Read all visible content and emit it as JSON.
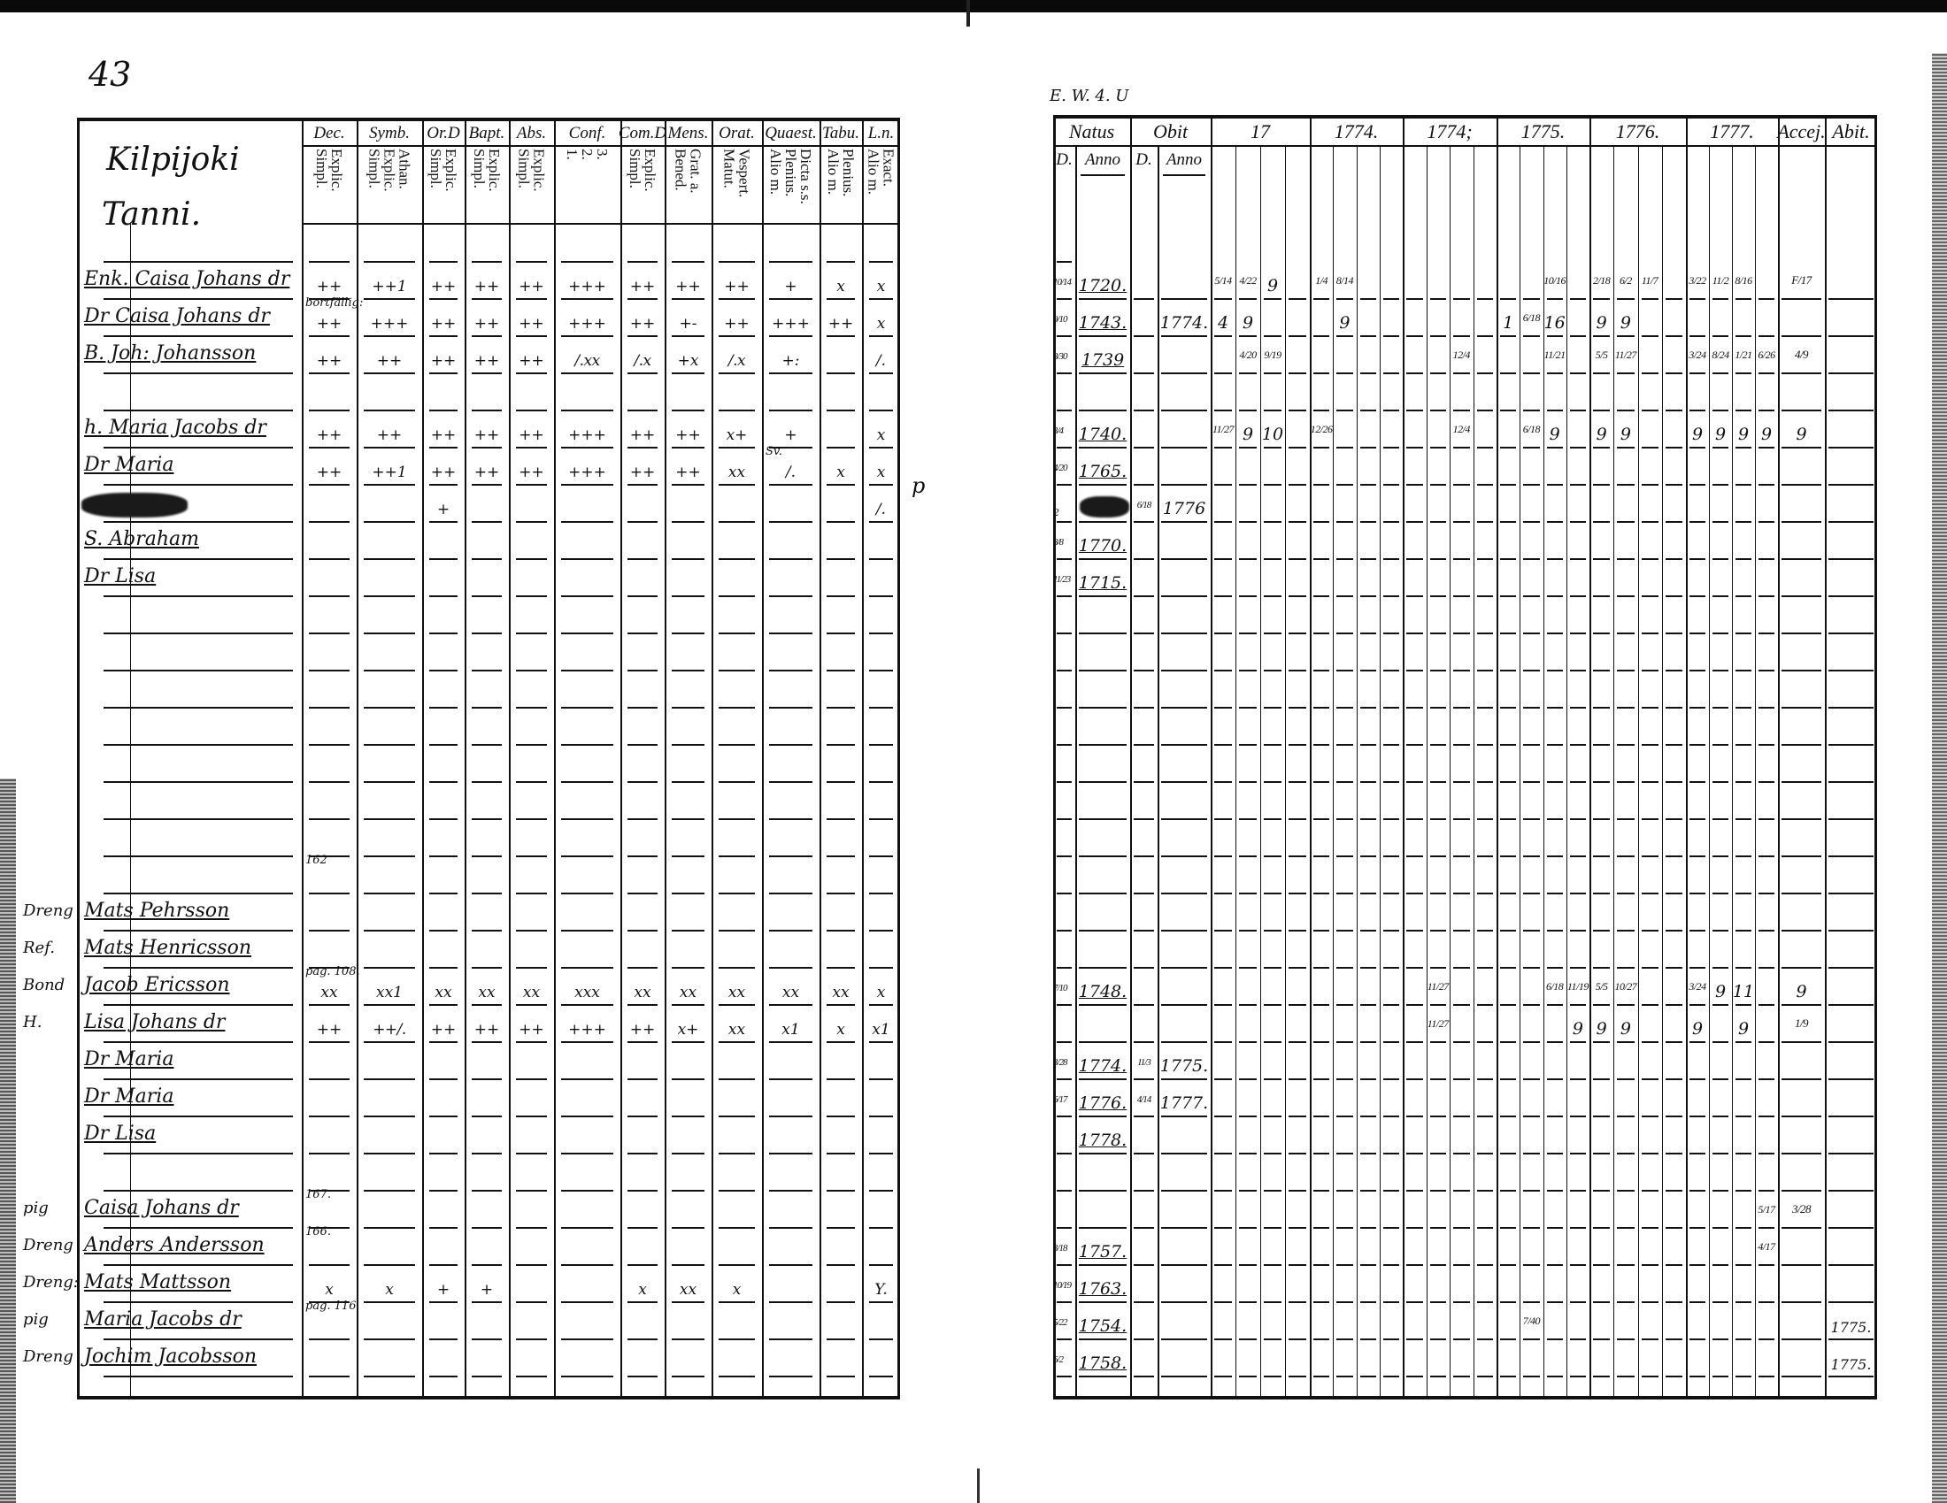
{
  "left_page": {
    "page_number": "43",
    "place_heading": [
      "Kilpijoki",
      "Tanni."
    ],
    "columns": [
      {
        "top": "Dec.",
        "sub": "Explic.\nSimpl."
      },
      {
        "top": "Symb.",
        "sub": "Athan.\nExplic.\nSimpl."
      },
      {
        "top": "Or.D",
        "sub": "Explic.\nSimpl."
      },
      {
        "top": "Bapt.",
        "sub": "Explic.\nSimpl."
      },
      {
        "top": "Abs.",
        "sub": "Explic.\nSimpl."
      },
      {
        "top": "Conf.",
        "sub": "3.\n2.\n1."
      },
      {
        "top": "Com.D",
        "sub": "Explic.\nSimpl."
      },
      {
        "top": "Mens.",
        "sub": "Grat. a.\nBened."
      },
      {
        "top": "Orat.",
        "sub": "Vespert.\nMatut."
      },
      {
        "top": "Quaest.",
        "sub": "Dicta s.s.\nPlenius.\nAlio m."
      },
      {
        "top": "Tabu.",
        "sub": "Plenius.\nAlio m."
      },
      {
        "top": "L.n.",
        "sub": "Exact.\nAlio m."
      }
    ],
    "rows": [
      {
        "row": 1,
        "prefix": "",
        "name": "Enk. Caisa Johans dr",
        "marks": [
          "++",
          "++1",
          "++",
          "++",
          "++",
          "+++",
          "++",
          "++",
          "++",
          "+",
          "x",
          "x"
        ]
      },
      {
        "row": 2,
        "prefix": "",
        "name": "Dr Caisa Johans dr",
        "marks": [
          "++",
          "+++",
          "++",
          "++",
          "++",
          "+++",
          "++",
          "+-",
          "++",
          "+++",
          "++",
          "x"
        ]
      },
      {
        "row": 3,
        "prefix": "",
        "name": "B. Joh: Johansson",
        "marks": [
          "++",
          "++",
          "++",
          "++",
          "++",
          "/.xx",
          "/.x",
          "+x",
          "/.x",
          "+:",
          "",
          "/."
        ]
      },
      {
        "row": 5,
        "prefix": "",
        "name": "h. Maria Jacobs dr",
        "marks": [
          "++",
          "++",
          "++",
          "++",
          "++",
          "+++",
          "++",
          "++",
          "x+",
          "+",
          "",
          "x"
        ]
      },
      {
        "row": 6,
        "prefix": "",
        "name": "Dr Maria",
        "marks": [
          "++",
          "++1",
          "++",
          "++",
          "++",
          "+++",
          "++",
          "++",
          "xx",
          "/.",
          "x",
          "x"
        ]
      },
      {
        "row": 7,
        "prefix": "",
        "name": "",
        "marks": [
          "",
          "",
          "+",
          "",
          "",
          "",
          "",
          "",
          "",
          "",
          "",
          "/."
        ]
      },
      {
        "row": 8,
        "prefix": "",
        "name": "S. Abraham",
        "marks": [
          "",
          "",
          "",
          "",
          "",
          "",
          "",
          "",
          "",
          "",
          "",
          ""
        ]
      },
      {
        "row": 9,
        "prefix": "",
        "name": "Dr Lisa",
        "marks": [
          "",
          "",
          "",
          "",
          "",
          "",
          "",
          "",
          "",
          "",
          "",
          ""
        ]
      },
      {
        "row": 18,
        "prefix": "Dreng",
        "name": "Mats Pehrsson",
        "marks": [
          "",
          "",
          "",
          "",
          "",
          "",
          "",
          "",
          "",
          "",
          "",
          ""
        ]
      },
      {
        "row": 19,
        "prefix": "Ref.",
        "name": "Mats Henricsson",
        "marks": [
          "",
          "",
          "",
          "",
          "",
          "",
          "",
          "",
          "",
          "",
          "",
          ""
        ]
      },
      {
        "row": 20,
        "prefix": "Bond",
        "name": "Jacob Ericsson",
        "marks": [
          "xx",
          "xx1",
          "xx",
          "xx",
          "xx",
          "xxx",
          "xx",
          "xx",
          "xx",
          "xx",
          "xx",
          "x"
        ]
      },
      {
        "row": 21,
        "prefix": "H.",
        "name": "Lisa Johans dr",
        "marks": [
          "++",
          "++/.",
          "++",
          "++",
          "++",
          "+++",
          "++",
          "x+",
          "xx",
          "x1",
          "x",
          "x1"
        ]
      },
      {
        "row": 22,
        "prefix": "",
        "name": "Dr Maria",
        "marks": [
          "",
          "",
          "",
          "",
          "",
          "",
          "",
          "",
          "",
          "",
          "",
          ""
        ]
      },
      {
        "row": 23,
        "prefix": "",
        "name": "Dr Maria",
        "marks": [
          "",
          "",
          "",
          "",
          "",
          "",
          "",
          "",
          "",
          "",
          "",
          ""
        ]
      },
      {
        "row": 24,
        "prefix": "",
        "name": "Dr Lisa",
        "marks": [
          "",
          "",
          "",
          "",
          "",
          "",
          "",
          "",
          "",
          "",
          "",
          ""
        ]
      },
      {
        "row": 26,
        "prefix": "pig",
        "name": "Caisa Johans dr",
        "marks": [
          "",
          "",
          "",
          "",
          "",
          "",
          "",
          "",
          "",
          "",
          "",
          ""
        ]
      },
      {
        "row": 27,
        "prefix": "Dreng",
        "name": "Anders Andersson",
        "marks": [
          "",
          "",
          "",
          "",
          "",
          "",
          "",
          "",
          "",
          "",
          "",
          ""
        ]
      },
      {
        "row": 28,
        "prefix": "Dreng:",
        "name": "Mats Mattsson",
        "marks": [
          "x",
          "x",
          "+",
          "+",
          "",
          "",
          "x",
          "xx",
          "x",
          "",
          "",
          "Y."
        ]
      },
      {
        "row": 29,
        "prefix": "pig",
        "name": "Maria Jacobs dr",
        "marks": [
          "",
          "",
          "",
          "",
          "",
          "",
          "",
          "",
          "",
          "",
          "",
          ""
        ]
      },
      {
        "row": 30,
        "prefix": "Dreng",
        "name": "Jochim Jacobsson",
        "marks": [
          "",
          "",
          "",
          "",
          "",
          "",
          "",
          "",
          "",
          "",
          "",
          ""
        ]
      }
    ],
    "notes": [
      {
        "row": 2,
        "col": 0,
        "text": "bortfällig:"
      },
      {
        "row": 6,
        "col": 9,
        "text": "Sv."
      },
      {
        "row": 17,
        "col": 0,
        "text": "162"
      },
      {
        "row": 20,
        "col": 0,
        "text": "pag. 108."
      },
      {
        "row": 26,
        "col": 0,
        "text": "167."
      },
      {
        "row": 27,
        "col": 0,
        "text": "166."
      },
      {
        "row": 29,
        "col": 0,
        "text": "pag. 116"
      }
    ],
    "margin_mark": "p"
  },
  "right_page": {
    "top_note": "E. W. 4. U",
    "headers": {
      "natus": "Natus",
      "obit": "Obit",
      "years": [
        "17",
        "1774.",
        "1774;",
        "1775.",
        "1776.",
        "1777."
      ],
      "accej": "Accej.",
      "abit": "Abit.",
      "d": "D.",
      "anno": "Anno"
    },
    "rows": [
      {
        "row": 1,
        "natus_d": "10/14",
        "natus_anno": "1720.",
        "obit_d": "",
        "obit_anno": "",
        "marks": [
          [
            0,
            0,
            "5/14"
          ],
          [
            0,
            1,
            "4/22"
          ],
          [
            0,
            2,
            "9"
          ],
          [
            1,
            0,
            "1/4"
          ],
          [
            1,
            1,
            "8/14"
          ],
          [
            3,
            2,
            "10/16"
          ],
          [
            4,
            0,
            "2/18"
          ],
          [
            4,
            1,
            "6/2"
          ],
          [
            4,
            2,
            "11/7"
          ],
          [
            5,
            0,
            "3/22"
          ],
          [
            5,
            1,
            "11/2"
          ],
          [
            5,
            2,
            "8/16"
          ]
        ],
        "accej": "F/17",
        "abit": ""
      },
      {
        "row": 2,
        "natus_d": "9/10",
        "natus_anno": "1743.",
        "obit_d": "",
        "obit_anno": "1774.",
        "marks": [
          [
            0,
            0,
            "4"
          ],
          [
            0,
            1,
            "9"
          ],
          [
            1,
            1,
            "9"
          ],
          [
            3,
            0,
            "1"
          ],
          [
            3,
            1,
            "6/18"
          ],
          [
            3,
            2,
            "16"
          ],
          [
            4,
            0,
            "9"
          ],
          [
            4,
            1,
            "9"
          ]
        ],
        "accej": "",
        "abit": ""
      },
      {
        "row": 3,
        "natus_d": "8/30",
        "natus_anno": "1739",
        "obit_d": "",
        "obit_anno": "",
        "marks": [
          [
            0,
            1,
            "4/20"
          ],
          [
            0,
            2,
            "9/19"
          ],
          [
            2,
            2,
            "12/4"
          ],
          [
            3,
            2,
            "11/21"
          ],
          [
            4,
            0,
            "5/5"
          ],
          [
            4,
            1,
            "11/27"
          ],
          [
            5,
            0,
            "3/24"
          ],
          [
            5,
            1,
            "8/24"
          ],
          [
            5,
            2,
            "1/21"
          ],
          [
            5,
            3,
            "6/26"
          ]
        ],
        "accej": "4/9",
        "abit": ""
      },
      {
        "row": 5,
        "natus_d": "3/4",
        "natus_anno": "1740.",
        "obit_d": "",
        "obit_anno": "",
        "marks": [
          [
            0,
            0,
            "11/27"
          ],
          [
            0,
            1,
            "9"
          ],
          [
            0,
            2,
            "10"
          ],
          [
            1,
            0,
            "12/26"
          ],
          [
            2,
            2,
            "12/4"
          ],
          [
            3,
            1,
            "6/18"
          ],
          [
            3,
            2,
            "9"
          ],
          [
            4,
            0,
            "9"
          ],
          [
            4,
            1,
            "9"
          ],
          [
            5,
            0,
            "9"
          ],
          [
            5,
            1,
            "9"
          ],
          [
            5,
            2,
            "9"
          ],
          [
            5,
            3,
            "9"
          ]
        ],
        "accej": "9",
        "abit": ""
      },
      {
        "row": 6,
        "natus_d": "4/20",
        "natus_anno": "1765.",
        "obit_d": "",
        "obit_anno": "",
        "marks": [],
        "accej": "",
        "abit": ""
      },
      {
        "row": 7,
        "natus_d": "2",
        "natus_anno": "",
        "obit_d": "6/18",
        "obit_anno": "1776",
        "marks": [],
        "accej": "",
        "abit": ""
      },
      {
        "row": 8,
        "natus_d": "8/8",
        "natus_anno": "1770.",
        "obit_d": "",
        "obit_anno": "",
        "marks": [],
        "accej": "",
        "abit": ""
      },
      {
        "row": 9,
        "natus_d": "11/23",
        "natus_anno": "1715.",
        "obit_d": "",
        "obit_anno": "",
        "marks": [],
        "accej": "",
        "abit": ""
      },
      {
        "row": 20,
        "natus_d": "7/10",
        "natus_anno": "1748.",
        "obit_d": "",
        "obit_anno": "",
        "marks": [
          [
            2,
            1,
            "11/27"
          ],
          [
            3,
            2,
            "6/18"
          ],
          [
            3,
            3,
            "11/19"
          ],
          [
            4,
            0,
            "5/5"
          ],
          [
            4,
            1,
            "10/27"
          ],
          [
            5,
            0,
            "3/24"
          ],
          [
            5,
            1,
            "9"
          ],
          [
            5,
            2,
            "11"
          ]
        ],
        "accej": "9",
        "abit": ""
      },
      {
        "row": 21,
        "natus_d": "",
        "natus_anno": "",
        "obit_d": "",
        "obit_anno": "",
        "marks": [
          [
            2,
            1,
            "11/27"
          ],
          [
            3,
            3,
            "9"
          ],
          [
            4,
            0,
            "9"
          ],
          [
            4,
            1,
            "9"
          ],
          [
            5,
            0,
            "9"
          ],
          [
            5,
            2,
            "9"
          ]
        ],
        "accej": "1/9",
        "abit": ""
      },
      {
        "row": 22,
        "natus_d": "3/28",
        "natus_anno": "1774.",
        "obit_d": "11/3",
        "obit_anno": "1775.",
        "marks": [],
        "accej": "",
        "abit": ""
      },
      {
        "row": 23,
        "natus_d": "6/17",
        "natus_anno": "1776.",
        "obit_d": "4/14",
        "obit_anno": "1777.",
        "marks": [],
        "accej": "",
        "abit": ""
      },
      {
        "row": 24,
        "natus_d": "",
        "natus_anno": "1778.",
        "obit_d": "",
        "obit_anno": "",
        "marks": [],
        "accej": "",
        "abit": ""
      },
      {
        "row": 26,
        "natus_d": "",
        "natus_anno": "",
        "obit_d": "",
        "obit_anno": "",
        "marks": [
          [
            5,
            3,
            "5/17"
          ]
        ],
        "accej": "3/28",
        "abit": ""
      },
      {
        "row": 27,
        "natus_d": "3/18",
        "natus_anno": "1757.",
        "obit_d": "",
        "obit_anno": "",
        "marks": [
          [
            5,
            3,
            "4/17"
          ]
        ],
        "accej": "",
        "abit": ""
      },
      {
        "row": 28,
        "natus_d": "10/19",
        "natus_anno": "1763.",
        "obit_d": "",
        "obit_anno": "",
        "marks": [],
        "accej": "",
        "abit": ""
      },
      {
        "row": 29,
        "natus_d": "5/22",
        "natus_anno": "1754.",
        "obit_d": "",
        "obit_anno": "",
        "marks": [
          [
            3,
            1,
            "7/40"
          ]
        ],
        "accej": "",
        "abit": "1775."
      },
      {
        "row": 30,
        "natus_d": "6/2",
        "natus_anno": "1758.",
        "obit_d": "",
        "obit_anno": "",
        "marks": [],
        "accej": "",
        "abit": "1775."
      }
    ]
  },
  "colors": {
    "ink": "#111111",
    "paper": "#ffffff"
  }
}
